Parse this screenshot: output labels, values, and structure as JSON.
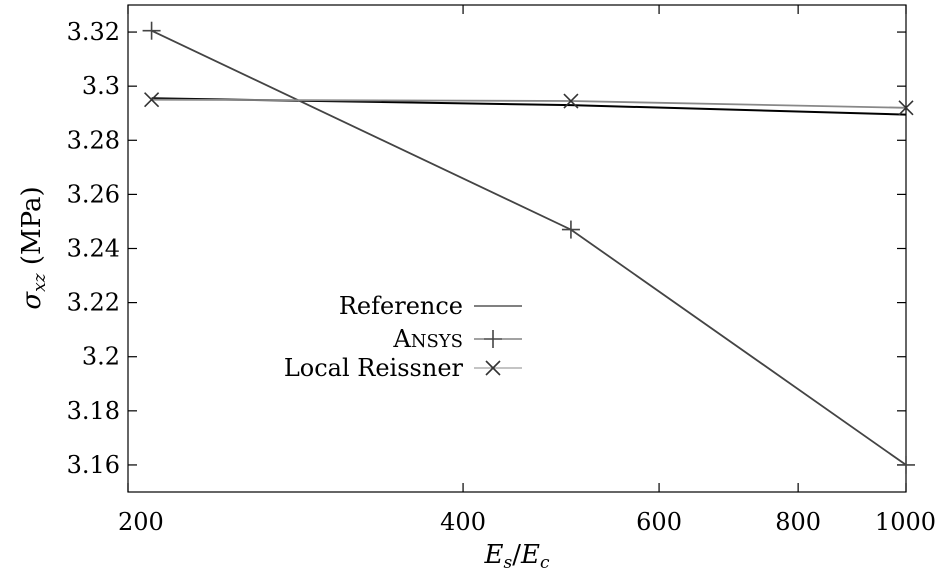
{
  "chart_data": {
    "type": "line",
    "xlabel": "E_s/E_c",
    "ylabel": "σ_xz (MPa)",
    "xscale": "log",
    "xlim": [
      200,
      1000
    ],
    "ylim": [
      3.15,
      3.33
    ],
    "xticks": [
      200,
      400,
      600,
      800,
      1000
    ],
    "xtick_labels": [
      "200",
      "400",
      "600",
      "800",
      "1000"
    ],
    "yticks": [
      3.16,
      3.18,
      3.2,
      3.22,
      3.24,
      3.26,
      3.28,
      3.3,
      3.32
    ],
    "ytick_labels": [
      "3.16",
      "3.18",
      "3.2",
      "3.22",
      "3.24",
      "3.26",
      "3.28",
      "3.3",
      "3.32"
    ],
    "grid": false,
    "legend_position": "center-left",
    "series": [
      {
        "name": "Reference",
        "color": "#000000",
        "marker": "none",
        "x": [
          210,
          500,
          1000
        ],
        "y": [
          3.2955,
          3.293,
          3.2895
        ]
      },
      {
        "name": "ANSYS",
        "color": "#444444",
        "marker": "plus",
        "x": [
          210,
          500,
          1000
        ],
        "y": [
          3.3205,
          3.247,
          3.16
        ]
      },
      {
        "name": "Local Reissner",
        "color": "#888888",
        "marker": "cross",
        "x": [
          210,
          500,
          1000
        ],
        "y": [
          3.295,
          3.2945,
          3.292
        ]
      }
    ]
  }
}
